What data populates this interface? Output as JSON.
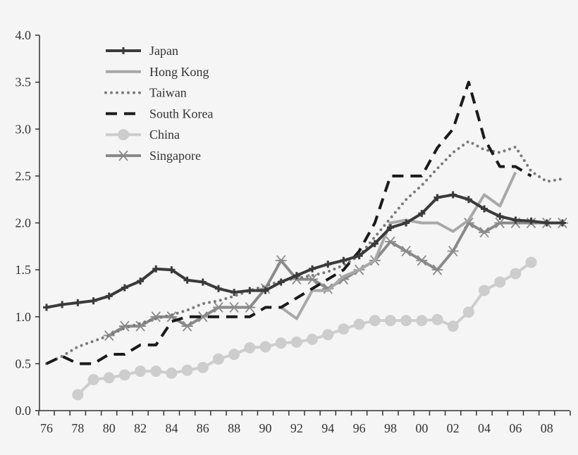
{
  "chart_data": {
    "type": "line",
    "title": "",
    "xlabel": "",
    "ylabel": "",
    "ylim": [
      0,
      4.0
    ],
    "xlim": [
      1976,
      2009
    ],
    "yticks": [
      "0.0",
      "0.5",
      "1.0",
      "1.5",
      "2.0",
      "2.5",
      "3.0",
      "3.5",
      "4.0"
    ],
    "xticks": [
      {
        "year": 1976,
        "label": "76"
      },
      {
        "year": 1978,
        "label": "78"
      },
      {
        "year": 1980,
        "label": "80"
      },
      {
        "year": 1982,
        "label": "82"
      },
      {
        "year": 1984,
        "label": "84"
      },
      {
        "year": 1986,
        "label": "86"
      },
      {
        "year": 1988,
        "label": "88"
      },
      {
        "year": 1990,
        "label": "90"
      },
      {
        "year": 1992,
        "label": "92"
      },
      {
        "year": 1994,
        "label": "94"
      },
      {
        "year": 1996,
        "label": "96"
      },
      {
        "year": 1998,
        "label": "98"
      },
      {
        "year": 2000,
        "label": "00"
      },
      {
        "year": 2002,
        "label": "02"
      },
      {
        "year": 2004,
        "label": "04"
      },
      {
        "year": 2006,
        "label": "06"
      },
      {
        "year": 2008,
        "label": "08"
      }
    ],
    "grid": false,
    "legend_position": "top-left",
    "series": [
      {
        "name": "Japan",
        "color": "#3a3a3a",
        "style": "solid-plus-markers",
        "start": 1976,
        "values": [
          1.1,
          1.13,
          1.15,
          1.17,
          1.22,
          1.31,
          1.38,
          1.51,
          1.5,
          1.39,
          1.37,
          1.3,
          1.26,
          1.28,
          1.28,
          1.37,
          1.44,
          1.51,
          1.56,
          1.6,
          1.65,
          1.78,
          1.95,
          2.0,
          2.1,
          2.27,
          2.3,
          2.25,
          2.15,
          2.07,
          2.03,
          2.02,
          2.0,
          2.0
        ]
      },
      {
        "name": "Hong Kong",
        "color": "#a8a8a8",
        "style": "solid",
        "start": 1991,
        "values": [
          1.1,
          0.98,
          1.28,
          1.28,
          1.43,
          1.5,
          1.6,
          2.0,
          2.03,
          2.0,
          2.0,
          1.91,
          2.03,
          2.3,
          2.18,
          2.54
        ]
      },
      {
        "name": "Taiwan",
        "color": "#7a7a7a",
        "style": "dotted",
        "start": 1976,
        "values": [
          0.5,
          0.58,
          0.68,
          0.74,
          0.8,
          0.88,
          0.93,
          0.98,
          1.02,
          1.07,
          1.14,
          1.17,
          1.22,
          1.28,
          1.33,
          1.38,
          1.41,
          1.44,
          1.48,
          1.55,
          1.65,
          1.85,
          2.05,
          2.25,
          2.4,
          2.58,
          2.75,
          2.87,
          2.78,
          2.75,
          2.81,
          2.55,
          2.44,
          2.47
        ]
      },
      {
        "name": "South Korea",
        "color": "#1a1a1a",
        "style": "dashed",
        "start": 1976,
        "values": [
          0.5,
          0.58,
          0.5,
          0.5,
          0.6,
          0.6,
          0.7,
          0.7,
          0.95,
          1.0,
          1.0,
          1.0,
          1.0,
          1.0,
          1.1,
          1.1,
          1.2,
          1.3,
          1.4,
          1.5,
          1.7,
          2.0,
          2.5,
          2.5,
          2.5,
          2.8,
          3.0,
          3.5,
          2.9,
          2.6,
          2.6,
          2.5
        ]
      },
      {
        "name": "China",
        "color": "#cdcdcd",
        "style": "solid-circle-markers",
        "start": 1978,
        "values": [
          0.17,
          0.33,
          0.35,
          0.38,
          0.42,
          0.42,
          0.4,
          0.43,
          0.46,
          0.55,
          0.6,
          0.67,
          0.68,
          0.72,
          0.73,
          0.76,
          0.81,
          0.87,
          0.92,
          0.96,
          0.96,
          0.96,
          0.96,
          0.97,
          0.9,
          1.05,
          1.28,
          1.37,
          1.46,
          1.58
        ]
      },
      {
        "name": "Singapore",
        "color": "#8a8a8a",
        "style": "solid-asterisk-markers",
        "start": 1980,
        "values": [
          0.8,
          0.9,
          0.9,
          1.0,
          1.0,
          0.9,
          1.0,
          1.1,
          1.1,
          1.1,
          1.3,
          1.6,
          1.4,
          1.4,
          1.3,
          1.4,
          1.5,
          1.6,
          1.8,
          1.7,
          1.6,
          1.5,
          1.7,
          2.0,
          1.9,
          2.0,
          2.0,
          2.0,
          2.0,
          2.0
        ]
      }
    ]
  }
}
